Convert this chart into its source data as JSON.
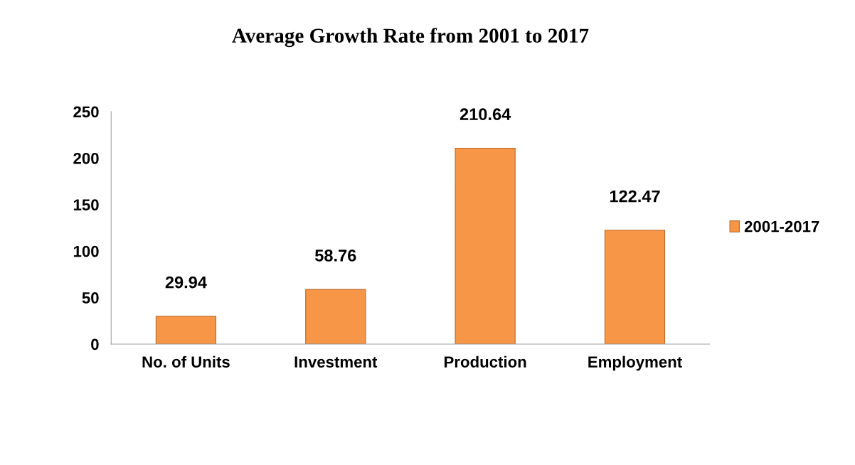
{
  "chart_data": {
    "type": "bar",
    "title": "Average Growth Rate from 2001 to 2017",
    "categories": [
      "No. of Units",
      "Investment",
      "Production",
      "Employment"
    ],
    "series": [
      {
        "name": "2001-2017",
        "color": "#f79646",
        "values": [
          29.94,
          58.76,
          210.64,
          122.47
        ]
      }
    ],
    "ylim": [
      0,
      250
    ],
    "yticks": [
      0,
      50,
      100,
      150,
      200,
      250
    ],
    "grid": false,
    "legend": "right",
    "data_labels": true
  }
}
